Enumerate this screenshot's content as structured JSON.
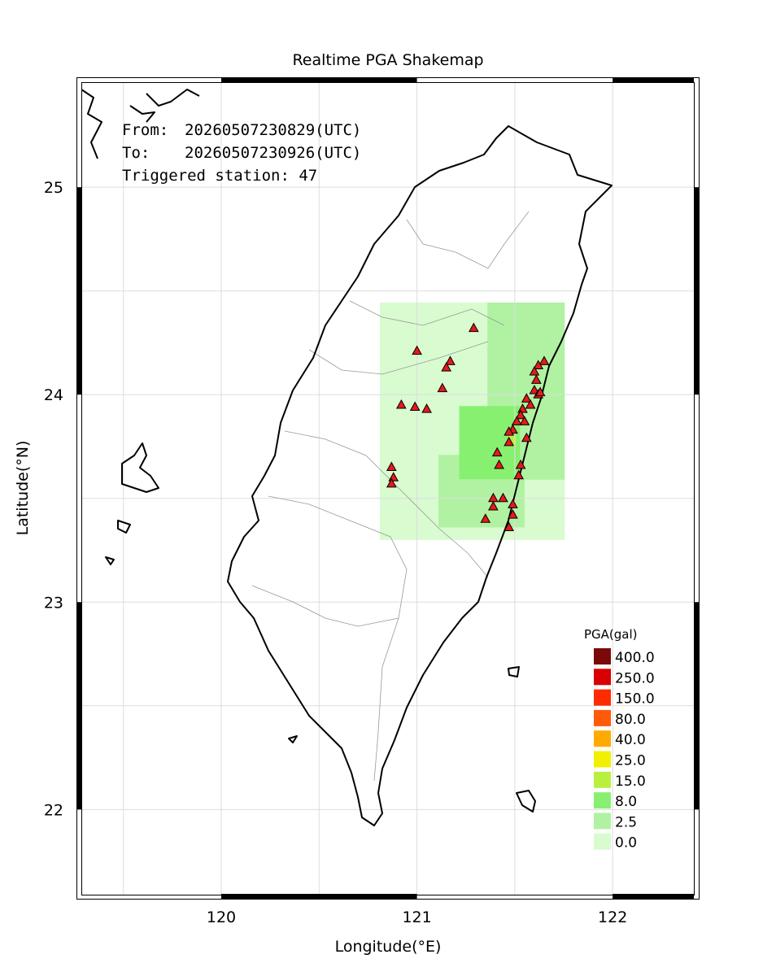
{
  "title": "Realtime PGA Shakemap",
  "info": {
    "from_label": "From:",
    "from": "20260507230829(UTC)",
    "to_label": "To:",
    "to": "20260507230926(UTC)",
    "triggered": "Triggered station: 47"
  },
  "map": {
    "xlim": [
      119.26,
      122.44
    ],
    "ylim": [
      21.57,
      25.53
    ],
    "xticks": [
      120,
      121,
      122
    ],
    "yticks": [
      22,
      23,
      24,
      25
    ],
    "xgrid": [
      119.5,
      120,
      120.5,
      121,
      121.5,
      122
    ],
    "ygrid": [
      22,
      22.5,
      23,
      23.5,
      24,
      24.5,
      25
    ],
    "xlabel": "Longitude(°E)",
    "ylabel": "Latitude(°N)",
    "grid": true
  },
  "legend": {
    "title": "PGA(gal)",
    "levels": [
      {
        "value": 400,
        "label": "400.0",
        "color": "#7a0a0a"
      },
      {
        "value": 250,
        "label": "250.0",
        "color": "#d80000"
      },
      {
        "value": 150,
        "label": "150.0",
        "color": "#ff2a00"
      },
      {
        "value": 80,
        "label": "80.0",
        "color": "#ff5a0a"
      },
      {
        "value": 40,
        "label": "40.0",
        "color": "#ffaa00"
      },
      {
        "value": 25,
        "label": "25.0",
        "color": "#f0f000"
      },
      {
        "value": 15,
        "label": "15.0",
        "color": "#b8f040"
      },
      {
        "value": 8,
        "label": "8.0",
        "color": "#88f070"
      },
      {
        "value": 2.5,
        "label": "2.5",
        "color": "#b0f2a2"
      },
      {
        "value": 0,
        "label": "0.0",
        "color": "#d8fbd0"
      }
    ]
  },
  "pga_zones": [
    {
      "lon": [
        120.81,
        121.755
      ],
      "lat": [
        23.3,
        24.444
      ],
      "level": 9
    },
    {
      "lon": [
        121.36,
        121.755
      ],
      "lat": [
        23.59,
        24.444
      ],
      "level": 8
    },
    {
      "lon": [
        121.11,
        121.55
      ],
      "lat": [
        23.36,
        23.71
      ],
      "level": 8
    },
    {
      "lon": [
        121.216,
        121.527
      ],
      "lat": [
        23.592,
        23.945
      ],
      "level": 7
    },
    {
      "lon": [
        121.465,
        121.506
      ],
      "lat": [
        23.75,
        23.81
      ],
      "level": 6
    }
  ],
  "stations": [
    {
      "lon": 121.29,
      "lat": 24.32
    },
    {
      "lon": 121.0,
      "lat": 24.21
    },
    {
      "lon": 121.17,
      "lat": 24.16
    },
    {
      "lon": 121.15,
      "lat": 24.13
    },
    {
      "lon": 121.13,
      "lat": 24.03
    },
    {
      "lon": 120.92,
      "lat": 23.95
    },
    {
      "lon": 120.99,
      "lat": 23.94
    },
    {
      "lon": 121.05,
      "lat": 23.93
    },
    {
      "lon": 121.65,
      "lat": 24.16
    },
    {
      "lon": 121.62,
      "lat": 24.14
    },
    {
      "lon": 121.6,
      "lat": 24.11
    },
    {
      "lon": 121.61,
      "lat": 24.07
    },
    {
      "lon": 121.6,
      "lat": 24.02
    },
    {
      "lon": 121.62,
      "lat": 24.0
    },
    {
      "lon": 121.63,
      "lat": 24.01
    },
    {
      "lon": 121.56,
      "lat": 23.98
    },
    {
      "lon": 121.58,
      "lat": 23.95
    },
    {
      "lon": 121.54,
      "lat": 23.93
    },
    {
      "lon": 121.53,
      "lat": 23.9
    },
    {
      "lon": 121.55,
      "lat": 23.87
    },
    {
      "lon": 121.51,
      "lat": 23.87
    },
    {
      "lon": 121.49,
      "lat": 23.83
    },
    {
      "lon": 121.47,
      "lat": 23.82
    },
    {
      "lon": 121.47,
      "lat": 23.77
    },
    {
      "lon": 121.41,
      "lat": 23.72
    },
    {
      "lon": 121.42,
      "lat": 23.66
    },
    {
      "lon": 121.53,
      "lat": 23.66
    },
    {
      "lon": 121.56,
      "lat": 23.79
    },
    {
      "lon": 121.52,
      "lat": 23.61
    },
    {
      "lon": 120.87,
      "lat": 23.65
    },
    {
      "lon": 120.88,
      "lat": 23.6
    },
    {
      "lon": 120.87,
      "lat": 23.57
    },
    {
      "lon": 121.39,
      "lat": 23.5
    },
    {
      "lon": 121.44,
      "lat": 23.5
    },
    {
      "lon": 121.39,
      "lat": 23.46
    },
    {
      "lon": 121.49,
      "lat": 23.47
    },
    {
      "lon": 121.49,
      "lat": 23.42
    },
    {
      "lon": 121.35,
      "lat": 23.4
    },
    {
      "lon": 121.47,
      "lat": 23.36
    }
  ]
}
